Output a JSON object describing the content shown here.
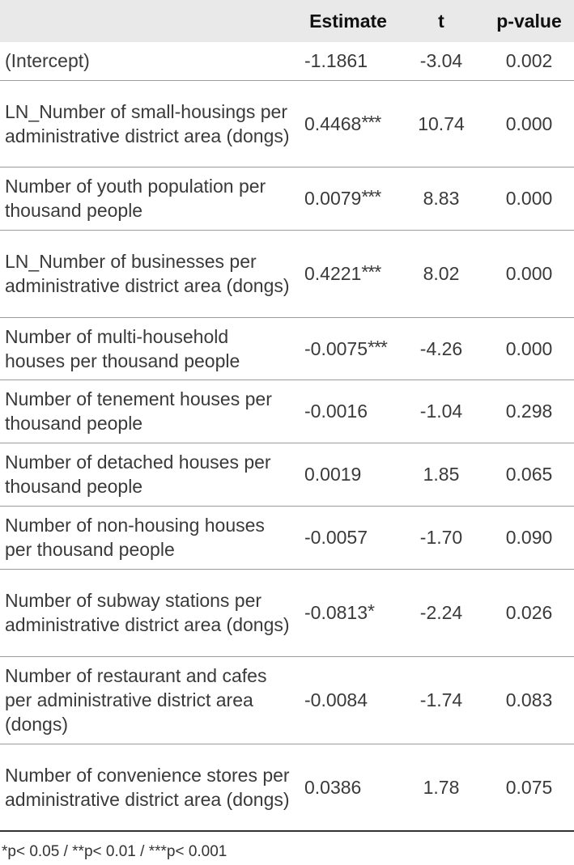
{
  "table": {
    "headers": [
      "",
      "Estimate",
      "t",
      "p-value"
    ],
    "rows": [
      {
        "variable": "(Intercept)",
        "estimate": "-1.1861",
        "sig": "",
        "t": "-3.04",
        "p": "0.002"
      },
      {
        "variable": "LN_Number of small-housings per administrative district area (dongs)",
        "estimate": "0.4468",
        "sig": "***",
        "t": "10.74",
        "p": "0.000"
      },
      {
        "variable": "Number of youth population per thousand people",
        "estimate": "0.0079",
        "sig": "***",
        "t": "8.83",
        "p": "0.000"
      },
      {
        "variable": "LN_Number of businesses per administrative district area (dongs)",
        "estimate": "0.4221",
        "sig": "***",
        "t": "8.02",
        "p": "0.000"
      },
      {
        "variable": "Number of multi-household houses per thousand people",
        "estimate": "-0.0075",
        "sig": "***",
        "t": "-4.26",
        "p": "0.000"
      },
      {
        "variable": "Number of tenement houses per thousand people",
        "estimate": "-0.0016",
        "sig": "",
        "t": "-1.04",
        "p": "0.298"
      },
      {
        "variable": "Number of detached houses per thousand people",
        "estimate": "0.0019",
        "sig": "",
        "t": "1.85",
        "p": "0.065"
      },
      {
        "variable": "Number of non-housing houses per thousand people",
        "estimate": "-0.0057",
        "sig": "",
        "t": "-1.70",
        "p": "0.090"
      },
      {
        "variable": "Number of subway stations per administrative district area (dongs)",
        "estimate": "-0.0813",
        "sig": "*",
        "t": "-2.24",
        "p": "0.026"
      },
      {
        "variable": "Number of restaurant and cafes per administrative district area (dongs)",
        "estimate": "-0.0084",
        "sig": "",
        "t": "-1.74",
        "p": "0.083"
      },
      {
        "variable": "Number of convenience stores per administrative district area (dongs)",
        "estimate": "0.0386",
        "sig": "",
        "t": "1.78",
        "p": "0.075"
      }
    ]
  },
  "footnote": "*p< 0.05 / **p< 0.01 / ***p< 0.001"
}
